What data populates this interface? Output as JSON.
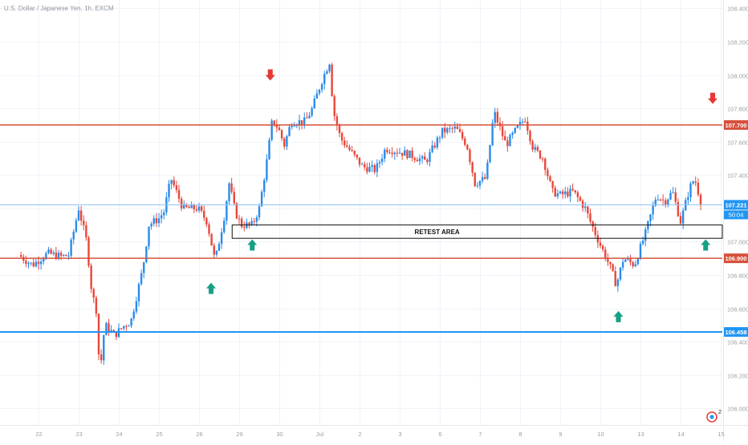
{
  "header": {
    "symbol_title": "U.S. Dollar / Japanese Yen, 1h, EXCM"
  },
  "countdown": "50:04",
  "retest_label": "RETEST AREA",
  "watermark_badge": "2",
  "colors": {
    "up": "#2a8be8",
    "down": "#e8473a",
    "resistance": "#d7503c",
    "support_blue": "#2196f3",
    "price_line": "#8ec4f5",
    "arrow_up": "#16a085",
    "arrow_down": "#e53935",
    "axis_text": "#9aa0a6"
  },
  "chart_data": {
    "type": "candlestick",
    "title": "U.S. Dollar / Japanese Yen, 1h, EXCM",
    "ylim": [
      105.9,
      108.45
    ],
    "y_ticks": [
      106.0,
      106.2,
      106.4,
      106.6,
      106.8,
      107.0,
      107.2,
      107.4,
      107.6,
      107.8,
      108.0,
      108.2,
      108.4
    ],
    "y_tick_labels": [
      "106.000",
      "106.200",
      "106.400",
      "106.600",
      "106.800",
      "107.000",
      "107.200",
      "107.400",
      "107.600",
      "107.800",
      "108.000",
      "108.200",
      "108.400"
    ],
    "x_ticks": [
      "22",
      "23",
      "24",
      "25",
      "26",
      "29",
      "30",
      "Jul",
      "2",
      "3",
      "6",
      "7",
      "8",
      "9",
      "10",
      "13",
      "14",
      "15"
    ],
    "horizontal_levels": [
      {
        "value": 107.7,
        "label": "107.700",
        "color": "resistance"
      },
      {
        "value": 106.9,
        "label": "106.900",
        "color": "resistance"
      },
      {
        "value": 106.458,
        "label": "106.458",
        "color": "support_blue"
      }
    ],
    "current_price": {
      "value": 107.221,
      "label": "107.221"
    },
    "retest_zone": {
      "high": 107.1,
      "low": 107.02
    },
    "arrows": [
      {
        "type": "up",
        "index": 19.2,
        "value": 106.72
      },
      {
        "type": "up",
        "index": 23.3,
        "value": 106.98
      },
      {
        "type": "down",
        "index": 25.1,
        "value": 108.0
      },
      {
        "type": "up",
        "index": 59.8,
        "value": 106.55
      },
      {
        "type": "up",
        "index": 68.5,
        "value": 106.98
      },
      {
        "type": "down",
        "index": 69.2,
        "value": 107.86
      }
    ],
    "close_path": [
      [
        0,
        106.92
      ],
      [
        1.4,
        106.86
      ],
      [
        2.9,
        106.93
      ],
      [
        4.3,
        106.91
      ],
      [
        5.0,
        106.92
      ],
      [
        6.0,
        107.2
      ],
      [
        6.8,
        107.0
      ],
      [
        7.3,
        106.7
      ],
      [
        7.8,
        106.58
      ],
      [
        8.1,
        106.2
      ],
      [
        8.6,
        106.5
      ],
      [
        9.6,
        106.44
      ],
      [
        10.6,
        106.5
      ],
      [
        11.2,
        106.52
      ],
      [
        12.4,
        106.84
      ],
      [
        13.0,
        107.1
      ],
      [
        14.0,
        107.14
      ],
      [
        14.5,
        107.18
      ],
      [
        15.2,
        107.38
      ],
      [
        16.4,
        107.2
      ],
      [
        17.9,
        107.2
      ],
      [
        18.8,
        107.12
      ],
      [
        19.6,
        106.88
      ],
      [
        20.5,
        107.15
      ],
      [
        21.0,
        107.35
      ],
      [
        21.6,
        107.18
      ],
      [
        22.2,
        107.1
      ],
      [
        23.3,
        107.1
      ],
      [
        24.0,
        107.2
      ],
      [
        24.8,
        107.5
      ],
      [
        25.3,
        107.73
      ],
      [
        25.9,
        107.68
      ],
      [
        26.5,
        107.58
      ],
      [
        27.2,
        107.72
      ],
      [
        28.6,
        107.72
      ],
      [
        29.3,
        107.8
      ],
      [
        30.2,
        107.96
      ],
      [
        31.0,
        108.08
      ],
      [
        31.4,
        107.78
      ],
      [
        32.1,
        107.62
      ],
      [
        33.0,
        107.55
      ],
      [
        34.3,
        107.45
      ],
      [
        35.6,
        107.43
      ],
      [
        36.6,
        107.56
      ],
      [
        37.9,
        107.54
      ],
      [
        39.1,
        107.52
      ],
      [
        40.6,
        107.48
      ],
      [
        42.2,
        107.66
      ],
      [
        43.6,
        107.68
      ],
      [
        44.7,
        107.58
      ],
      [
        45.5,
        107.35
      ],
      [
        46.6,
        107.38
      ],
      [
        47.4,
        107.78
      ],
      [
        48.6,
        107.58
      ],
      [
        49.7,
        107.68
      ],
      [
        50.5,
        107.74
      ],
      [
        51.3,
        107.56
      ],
      [
        52.3,
        107.5
      ],
      [
        53.2,
        107.3
      ],
      [
        54.0,
        107.28
      ],
      [
        55.3,
        107.3
      ],
      [
        56.5,
        107.2
      ],
      [
        57.0,
        107.12
      ],
      [
        58.0,
        106.98
      ],
      [
        58.9,
        106.86
      ],
      [
        59.6,
        106.74
      ],
      [
        60.3,
        106.9
      ],
      [
        61.4,
        106.86
      ],
      [
        62.5,
        107.05
      ],
      [
        63.6,
        107.28
      ],
      [
        64.4,
        107.24
      ],
      [
        65.2,
        107.3
      ],
      [
        66.0,
        107.12
      ],
      [
        66.9,
        107.32
      ],
      [
        67.4,
        107.38
      ],
      [
        68.1,
        107.22
      ]
    ]
  }
}
